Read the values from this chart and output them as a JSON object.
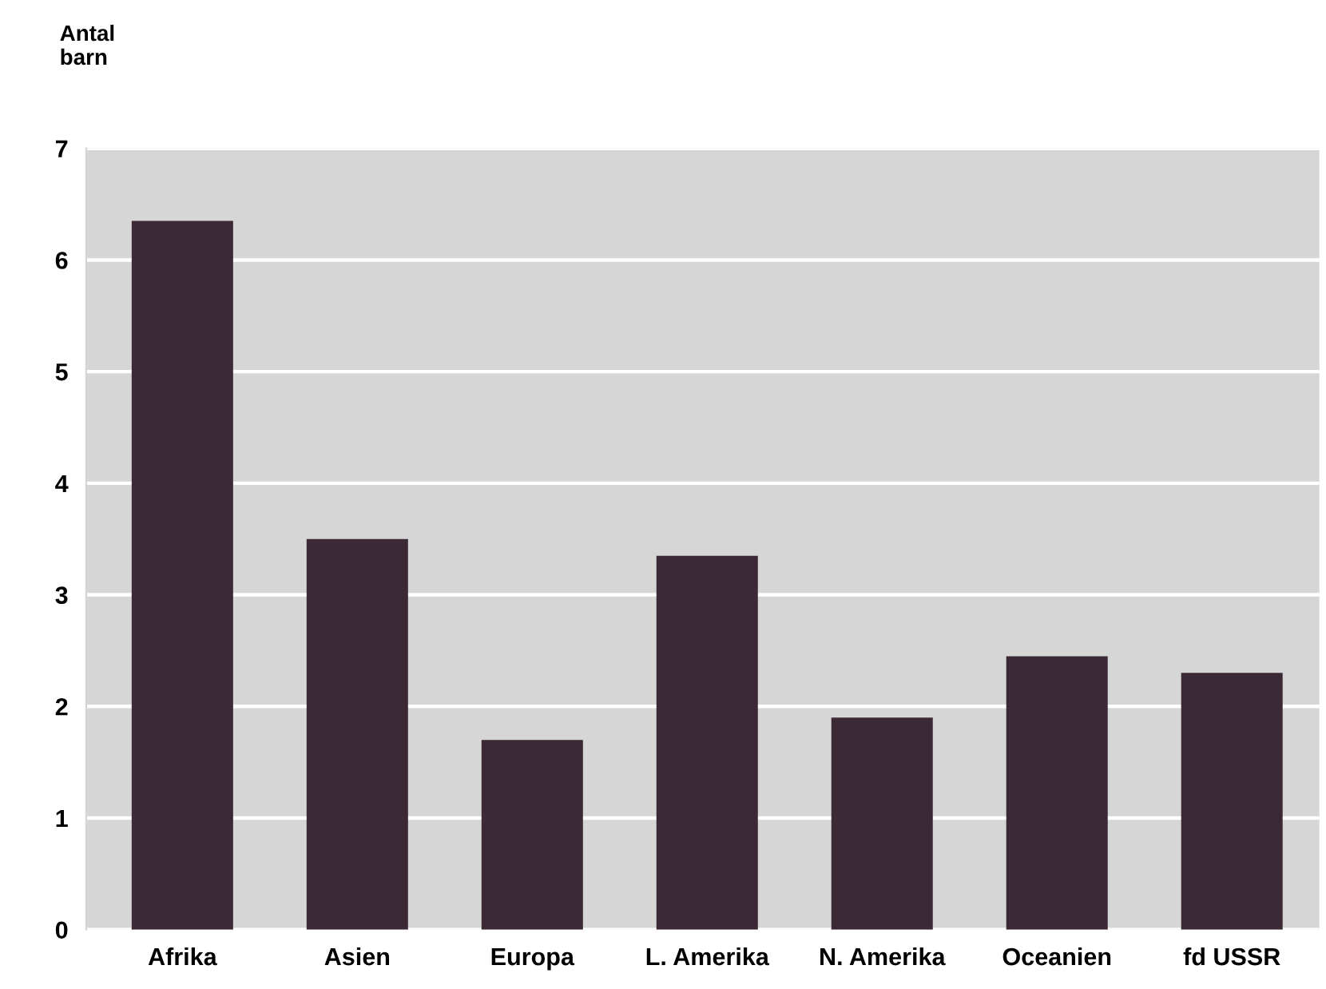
{
  "chart_data": {
    "type": "bar",
    "ylabel": "Antal\nbarn",
    "categories": [
      "Afrika",
      "Asien",
      "Europa",
      "L. Amerika",
      "N. Amerika",
      "Oceanien",
      "fd USSR"
    ],
    "values": [
      6.35,
      3.5,
      1.7,
      3.35,
      1.9,
      2.45,
      2.3
    ],
    "color": "#3b2a35",
    "ylim": [
      0,
      7
    ],
    "yticks": [
      0,
      1,
      2,
      3,
      4,
      5,
      6,
      7
    ],
    "grid": "y"
  }
}
